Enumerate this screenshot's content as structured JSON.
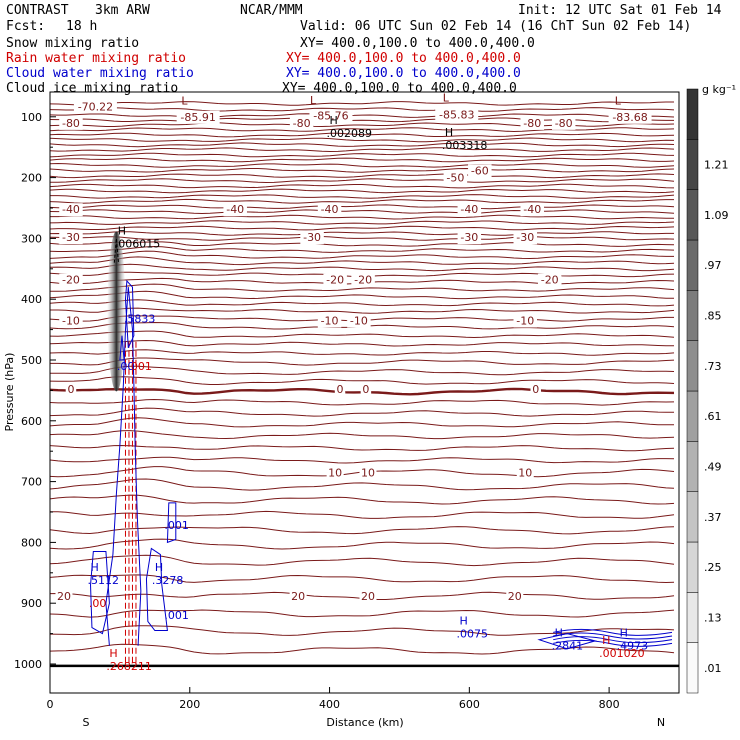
{
  "header": {
    "experiment": "CONTRAST",
    "grid": "3km ARW",
    "org": "NCAR/MMM",
    "init": "Init: 12 UTC Sat 01 Feb 14",
    "fcst_label": "Fcst:",
    "fcst_value": "18 h",
    "valid": "Valid: 06 UTC Sun 02 Feb 14 (16 ChT Sun 02 Feb 14)"
  },
  "fields": [
    {
      "name": "Snow mixing ratio",
      "color": "#000000",
      "xy": "XY= 400.0,100.0 to 400.0,400.0"
    },
    {
      "name": "Rain water mixing ratio",
      "color": "#d00000",
      "xy": "XY= 400.0,100.0 to 400.0,400.0"
    },
    {
      "name": "Cloud water mixing ratio",
      "color": "#0000cc",
      "xy": "XY= 400.0,100.0 to 400.0,400.0"
    },
    {
      "name": "Cloud ice mixing ratio",
      "color": "#000000",
      "xy": "XY= 400.0,100.0 to 400.0,400.0"
    }
  ],
  "colorbar": {
    "unit": "g kg⁻¹",
    "levels": [
      ".01",
      ".13",
      ".25",
      ".37",
      ".49",
      ".61",
      ".73",
      ".85",
      ".97",
      "1.09",
      "1.21"
    ]
  },
  "chart_data": {
    "type": "contour cross-section",
    "xlabel": "Distance (km)",
    "ylabel": "Pressure (hPa)",
    "xlim": [
      0,
      900
    ],
    "ylim": [
      1050,
      50
    ],
    "x_ticks": [
      "0",
      "200",
      "400",
      "600",
      "800"
    ],
    "y_ticks": [
      "100",
      "200",
      "300",
      "400",
      "500",
      "600",
      "700",
      "800",
      "900",
      "1000"
    ],
    "x_end_labels": {
      "left": "S",
      "right": "N"
    },
    "temperature_contour_labels": [
      {
        "text": "-70.22",
        "x": 65,
        "p": 83
      },
      {
        "text": "-85.91",
        "x": 212,
        "p": 100
      },
      {
        "text": "-85.76",
        "x": 402,
        "p": 98
      },
      {
        "text": "-85.83",
        "x": 582,
        "p": 96
      },
      {
        "text": "-83.68",
        "x": 830,
        "p": 100
      },
      {
        "text": "-80",
        "x": 30,
        "p": 110
      },
      {
        "text": "-80",
        "x": 360,
        "p": 110
      },
      {
        "text": "-80",
        "x": 690,
        "p": 110
      },
      {
        "text": "-80",
        "x": 735,
        "p": 110
      },
      {
        "text": "-60",
        "x": 615,
        "p": 188
      },
      {
        "text": "-50",
        "x": 580,
        "p": 200
      },
      {
        "text": "-40",
        "x": 30,
        "p": 252
      },
      {
        "text": "-40",
        "x": 265,
        "p": 252
      },
      {
        "text": "-40",
        "x": 400,
        "p": 252
      },
      {
        "text": "-40",
        "x": 600,
        "p": 252
      },
      {
        "text": "-40",
        "x": 690,
        "p": 252
      },
      {
        "text": "-30",
        "x": 30,
        "p": 298
      },
      {
        "text": "-30",
        "x": 375,
        "p": 298
      },
      {
        "text": "-30",
        "x": 600,
        "p": 298
      },
      {
        "text": "-30",
        "x": 680,
        "p": 298
      },
      {
        "text": "-20",
        "x": 30,
        "p": 368
      },
      {
        "text": "-20",
        "x": 408,
        "p": 368
      },
      {
        "text": "-20",
        "x": 448,
        "p": 368
      },
      {
        "text": "-20",
        "x": 715,
        "p": 368
      },
      {
        "text": "-10",
        "x": 30,
        "p": 435
      },
      {
        "text": "-10",
        "x": 400,
        "p": 435
      },
      {
        "text": "-10",
        "x": 442,
        "p": 435
      },
      {
        "text": "-10",
        "x": 680,
        "p": 435
      },
      {
        "text": "0",
        "x": 30,
        "p": 548
      },
      {
        "text": "0",
        "x": 415,
        "p": 548
      },
      {
        "text": "0",
        "x": 452,
        "p": 548
      },
      {
        "text": "0",
        "x": 695,
        "p": 548
      },
      {
        "text": "10",
        "x": 408,
        "p": 685
      },
      {
        "text": "10",
        "x": 455,
        "p": 685
      },
      {
        "text": "10",
        "x": 680,
        "p": 685
      },
      {
        "text": "20",
        "x": 20,
        "p": 888
      },
      {
        "text": "20",
        "x": 355,
        "p": 888
      },
      {
        "text": "20",
        "x": 455,
        "p": 888
      },
      {
        "text": "20",
        "x": 665,
        "p": 888
      }
    ],
    "extrema_labels": [
      {
        "mark": "L",
        "text": "",
        "x": 188,
        "p": 93,
        "color": "#7a1010"
      },
      {
        "mark": "L",
        "text": "",
        "x": 372,
        "p": 92,
        "color": "#7a1010"
      },
      {
        "mark": "L",
        "text": "",
        "x": 562,
        "p": 88,
        "color": "#7a1010"
      },
      {
        "mark": "L",
        "text": "",
        "x": 808,
        "p": 93,
        "color": "#7a1010"
      },
      {
        "mark": "H",
        "text": ".002089",
        "x": 400,
        "p": 125,
        "color": "#000000"
      },
      {
        "mark": "H",
        "text": ".003318",
        "x": 565,
        "p": 145,
        "color": "#000000"
      },
      {
        "mark": "H",
        "text": ".006015",
        "x": 97,
        "p": 307,
        "color": "#000000"
      },
      {
        "mark": "",
        "text": ".5833",
        "x": 110,
        "p": 430,
        "color": "#0000cc"
      },
      {
        "mark": "",
        "text": ".00",
        "x": 100,
        "p": 508,
        "color": "#0000cc"
      },
      {
        "mark": "",
        "text": "001",
        "x": 120,
        "p": 508,
        "color": "#d00000"
      },
      {
        "mark": "",
        "text": ".001",
        "x": 168,
        "p": 770,
        "color": "#0000cc"
      },
      {
        "mark": "H",
        "text": ".5112",
        "x": 58,
        "p": 860,
        "color": "#0000cc"
      },
      {
        "mark": "H",
        "text": ".3278",
        "x": 150,
        "p": 860,
        "color": "#0000cc"
      },
      {
        "mark": "",
        "text": ".001",
        "x": 168,
        "p": 918,
        "color": "#0000cc"
      },
      {
        "mark": "",
        "text": ".00",
        "x": 60,
        "p": 898,
        "color": "#d00000"
      },
      {
        "mark": "H",
        "text": ".0075",
        "x": 586,
        "p": 948,
        "color": "#0000cc"
      },
      {
        "mark": "H",
        "text": ".2841",
        "x": 722,
        "p": 968,
        "color": "#0000cc"
      },
      {
        "mark": "H",
        "text": ".4973",
        "x": 815,
        "p": 968,
        "color": "#0000cc"
      },
      {
        "mark": "H",
        "text": ".001020",
        "x": 790,
        "p": 980,
        "color": "#d00000"
      },
      {
        "mark": "H",
        "text": ".268211",
        "x": 85,
        "p": 1002,
        "color": "#d00000"
      }
    ]
  }
}
